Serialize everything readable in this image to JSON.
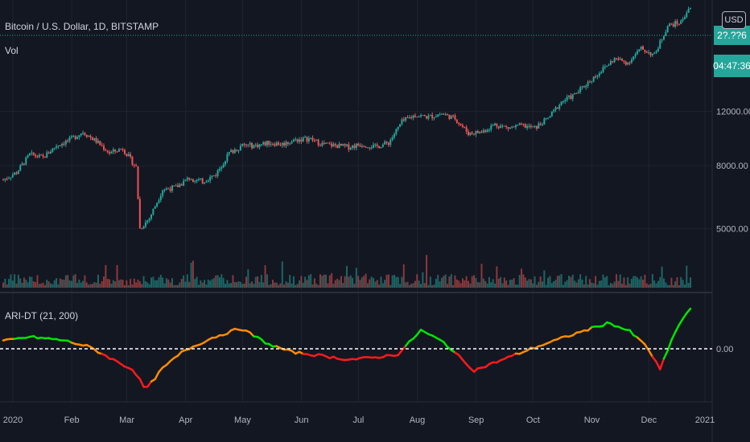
{
  "header": {
    "symbol": "Bitcoin / U.S. Dollar, 1D, BITSTAMP",
    "volume_label": "Vol",
    "indicator_label": "ARI-DT (21, 200)",
    "currency": "USD"
  },
  "badges": {
    "last_price": "2?.??6",
    "countdown": "04:47:36",
    "current_value_top": "2?.??6"
  },
  "colors": {
    "background": "#131722",
    "grid": "#1f2330",
    "up": "#26a69a",
    "down": "#ef5350",
    "osc_green": "#00e600",
    "osc_orange": "#ff8c00",
    "osc_red": "#ff1a1a"
  },
  "chart_data": [
    {
      "type": "candlestick",
      "title": "Bitcoin / U.S. Dollar, 1D, BITSTAMP",
      "y_scale": "log",
      "y_ticks": [
        5000,
        8000,
        12000
      ],
      "y_tick_labels": [
        "5000.00",
        "8000.00",
        "12000.00"
      ],
      "ylim": [
        3800,
        24500
      ],
      "x_tick_labels": [
        "2020",
        "Feb",
        "Mar",
        "Apr",
        "May",
        "Jun",
        "Jul",
        "Aug",
        "Sep",
        "Oct",
        "Nov",
        "Dec",
        "2021"
      ],
      "x": [
        "2020-01-01",
        "2020-01-08",
        "2020-01-15",
        "2020-01-22",
        "2020-01-29",
        "2020-02-05",
        "2020-02-12",
        "2020-02-19",
        "2020-02-26",
        "2020-03-04",
        "2020-03-11",
        "2020-03-13",
        "2020-03-18",
        "2020-03-25",
        "2020-04-01",
        "2020-04-08",
        "2020-04-15",
        "2020-04-22",
        "2020-04-29",
        "2020-05-06",
        "2020-05-13",
        "2020-05-20",
        "2020-05-27",
        "2020-06-03",
        "2020-06-10",
        "2020-06-17",
        "2020-06-24",
        "2020-07-01",
        "2020-07-08",
        "2020-07-15",
        "2020-07-22",
        "2020-07-29",
        "2020-08-05",
        "2020-08-12",
        "2020-08-19",
        "2020-08-26",
        "2020-09-02",
        "2020-09-09",
        "2020-09-16",
        "2020-09-23",
        "2020-09-30",
        "2020-10-07",
        "2020-10-14",
        "2020-10-21",
        "2020-10-28",
        "2020-11-04",
        "2020-11-11",
        "2020-11-18",
        "2020-11-25",
        "2020-12-02",
        "2020-12-09",
        "2020-12-16",
        "2020-12-23",
        "2020-12-27"
      ],
      "close": [
        7200,
        7600,
        8700,
        8500,
        9300,
        9700,
        10300,
        9600,
        8800,
        9100,
        7900,
        5000,
        5400,
        6700,
        6800,
        7300,
        7100,
        7500,
        8800,
        9300,
        9300,
        9500,
        9400,
        9700,
        9800,
        9400,
        9300,
        9200,
        9400,
        9200,
        9500,
        11100,
        11700,
        11500,
        11800,
        11400,
        10200,
        10300,
        10900,
        10600,
        10800,
        10600,
        11400,
        12900,
        13600,
        14900,
        16300,
        17800,
        17300,
        19200,
        18300,
        22800,
        23400,
        26000
      ],
      "volume_note": "volume histogram shown in lower band of main pane"
    },
    {
      "type": "line",
      "title": "ARI-DT (21, 200)",
      "y_ticks": [
        0
      ],
      "y_tick_labels": [
        "0.00"
      ],
      "zero_line": "dashed",
      "segment_colors": [
        "green",
        "orange",
        "red"
      ],
      "x": [
        "2020-01-01",
        "2020-01-15",
        "2020-02-01",
        "2020-02-15",
        "2020-03-01",
        "2020-03-10",
        "2020-03-16",
        "2020-03-25",
        "2020-04-05",
        "2020-04-20",
        "2020-05-05",
        "2020-05-20",
        "2020-06-01",
        "2020-06-15",
        "2020-07-01",
        "2020-07-15",
        "2020-07-27",
        "2020-08-08",
        "2020-08-20",
        "2020-09-05",
        "2020-09-20",
        "2020-10-05",
        "2020-10-20",
        "2020-11-01",
        "2020-11-15",
        "2020-11-26",
        "2020-12-05",
        "2020-12-12",
        "2020-12-20",
        "2020-12-27"
      ],
      "values": [
        0.35,
        0.55,
        0.4,
        0.1,
        -0.6,
        -1.0,
        -1.9,
        -0.9,
        -0.1,
        0.5,
        0.95,
        0.2,
        -0.15,
        -0.3,
        -0.5,
        -0.4,
        -0.25,
        0.85,
        0.3,
        -1.0,
        -0.5,
        0.0,
        0.45,
        0.8,
        1.2,
        0.8,
        0.1,
        -0.95,
        0.8,
        1.8
      ],
      "colors": [
        "orange",
        "green",
        "green",
        "orange",
        "red",
        "red",
        "red",
        "orange",
        "orange",
        "orange",
        "orange",
        "green",
        "orange",
        "red",
        "red",
        "red",
        "red",
        "green",
        "green",
        "red",
        "red",
        "orange",
        "orange",
        "orange",
        "green",
        "green",
        "orange",
        "red",
        "green",
        "green"
      ]
    }
  ]
}
